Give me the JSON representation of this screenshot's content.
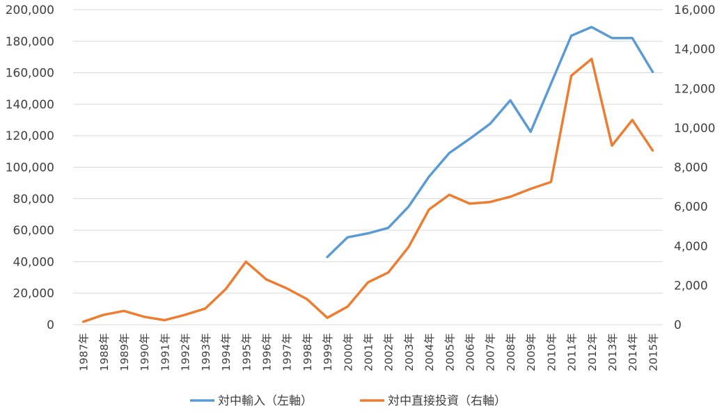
{
  "chart_data": {
    "type": "line",
    "title": "",
    "categories": [
      "1987年",
      "1988年",
      "1989年",
      "1990年",
      "1991年",
      "1992年",
      "1993年",
      "1994年",
      "1995年",
      "1996年",
      "1997年",
      "1998年",
      "1999年",
      "2000年",
      "2001年",
      "2002年",
      "2003年",
      "2004年",
      "2005年",
      "2006年",
      "2007年",
      "2008年",
      "2009年",
      "2010年",
      "2011年",
      "2012年",
      "2013年",
      "2014年",
      "2015年"
    ],
    "series": [
      {
        "name": "対中輸入（左軸）",
        "axis": "left",
        "color": "#5B9BD5",
        "values": [
          null,
          null,
          null,
          null,
          null,
          null,
          null,
          null,
          null,
          null,
          null,
          null,
          43000,
          55500,
          58000,
          61500,
          75000,
          94000,
          109000,
          118000,
          127500,
          142500,
          122500,
          153000,
          183500,
          189000,
          182000,
          182000,
          160500
        ]
      },
      {
        "name": "対中直接投資（右軸）",
        "axis": "right",
        "color": "#ED7D31",
        "values": [
          150,
          500,
          700,
          400,
          230,
          500,
          820,
          1800,
          3200,
          2300,
          1850,
          1300,
          350,
          920,
          2150,
          2650,
          3950,
          5850,
          6600,
          6150,
          6230,
          6500,
          6900,
          7250,
          12650,
          13500,
          9100,
          10400,
          8850
        ]
      }
    ],
    "y_left": {
      "range": [
        0,
        200000
      ],
      "ticks": [
        "0",
        "20,000",
        "40,000",
        "60,000",
        "80,000",
        "100,000",
        "120,000",
        "140,000",
        "160,000",
        "180,000",
        "200,000"
      ]
    },
    "y_right": {
      "range": [
        0,
        16000
      ],
      "ticks": [
        "0",
        "2,000",
        "4,000",
        "6,000",
        "8,000",
        "10,000",
        "12,000",
        "14,000",
        "16,000"
      ]
    },
    "grid": true,
    "legend_position": "bottom"
  }
}
